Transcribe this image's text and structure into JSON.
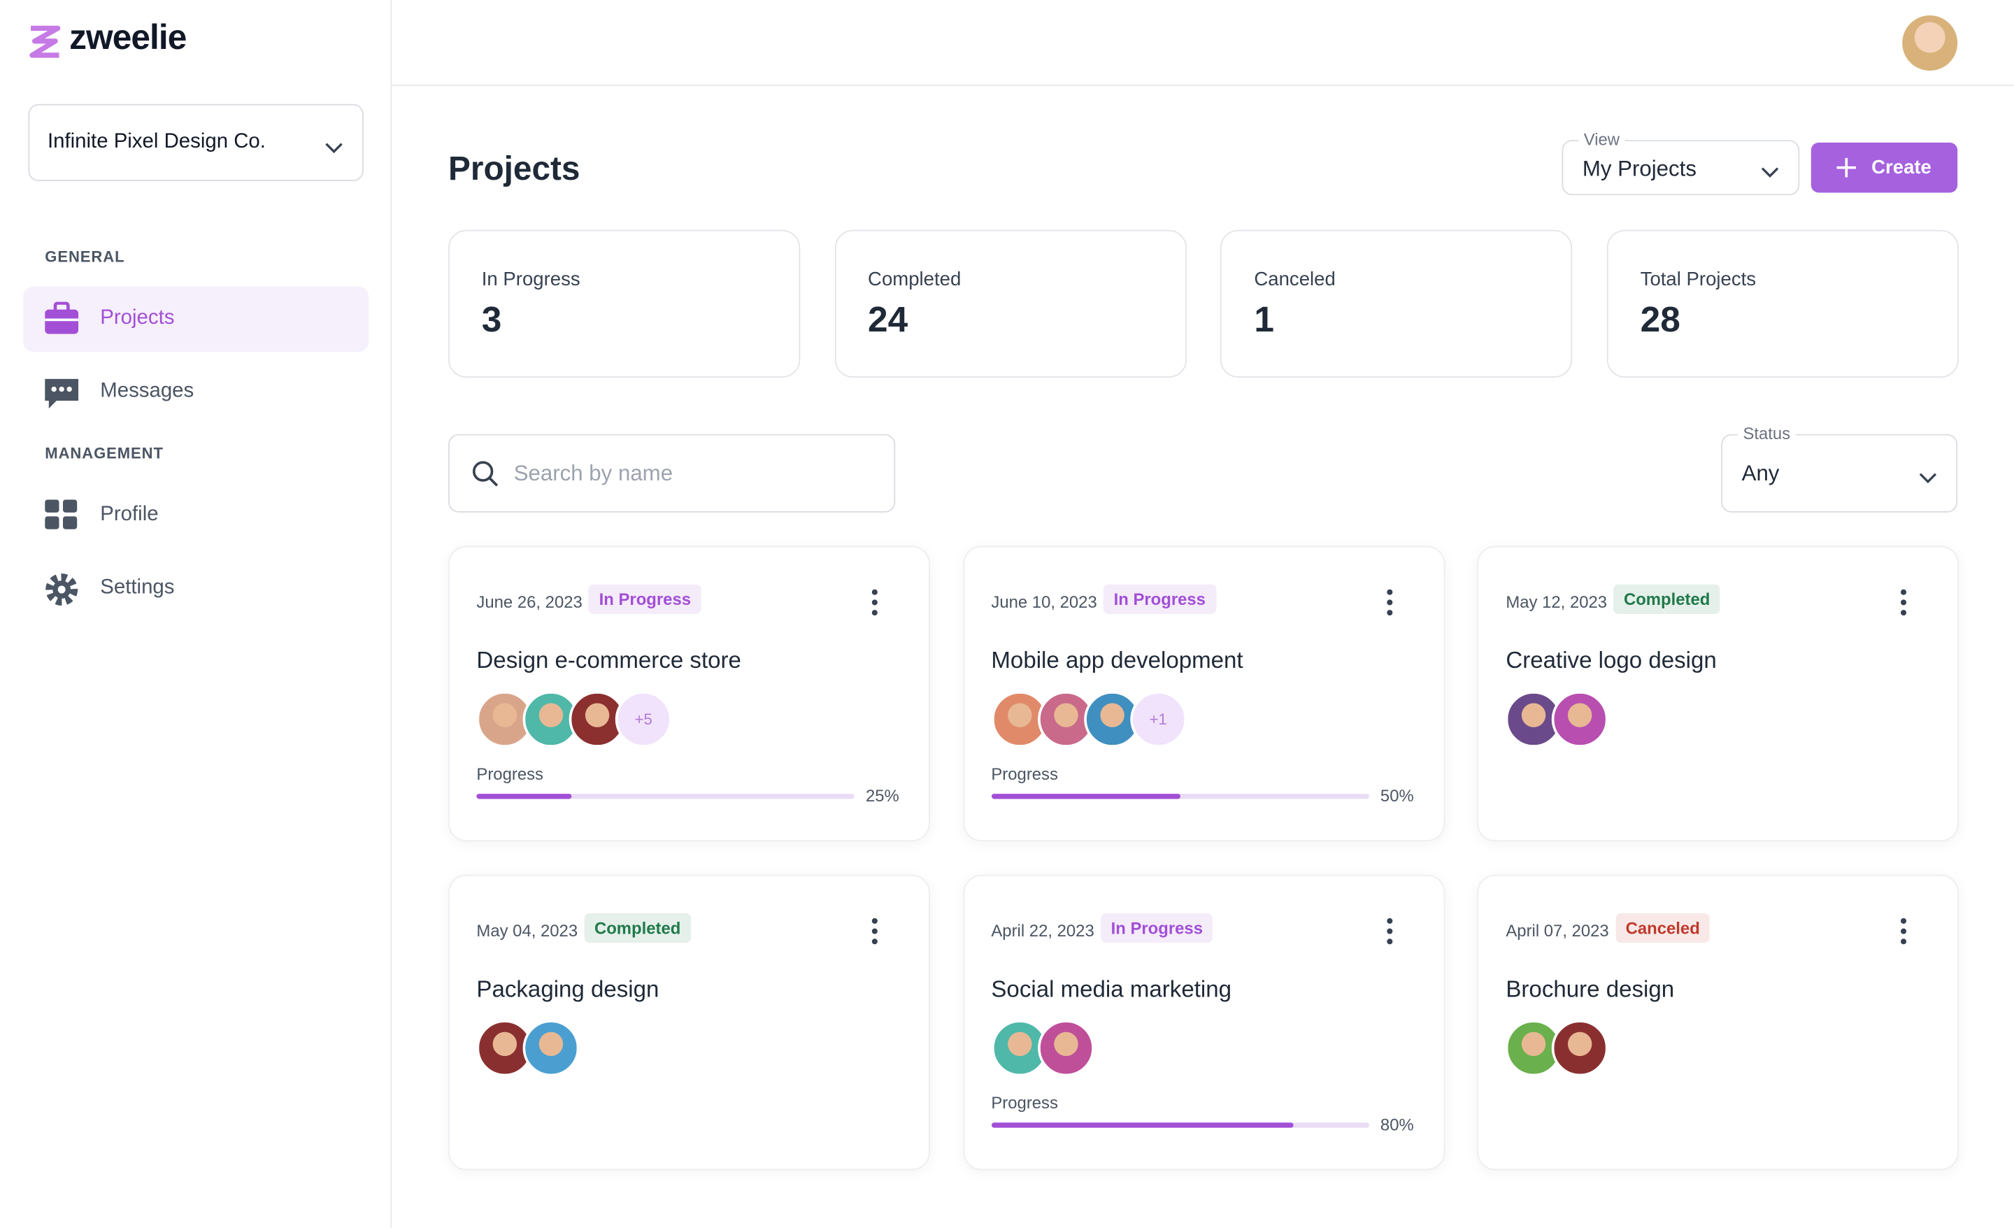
{
  "brand": "zweelie",
  "organization": "Infinite Pixel Design Co.",
  "sidebar": {
    "sections": [
      {
        "heading": "GENERAL",
        "items": [
          "Projects",
          "Messages"
        ]
      },
      {
        "heading": "MANAGEMENT",
        "items": [
          "Profile",
          "Settings"
        ]
      }
    ]
  },
  "header": {
    "title": "Projects",
    "view_label": "View",
    "view_value": "My Projects",
    "create_button": "Create"
  },
  "stats": [
    {
      "label": "In Progress",
      "value": 3
    },
    {
      "label": "Completed",
      "value": 24
    },
    {
      "label": "Canceled",
      "value": 1
    },
    {
      "label": "Total Projects",
      "value": 28
    }
  ],
  "search_placeholder": "Search by name",
  "status_filter": {
    "label": "Status",
    "value": "Any"
  },
  "projects": [
    {
      "date": "June 26, 2023",
      "status": "In Progress",
      "status_color": "#a24fd6",
      "title": "Design e-commerce store",
      "avatar_colors": [
        "#d9a58a",
        "#4fb8a8",
        "#8c2f2f"
      ],
      "extra_members": "+5",
      "progress": {
        "label": "Progress",
        "value": 25,
        "value_label": "25%"
      }
    },
    {
      "date": "June 10, 2023",
      "status": "In Progress",
      "status_color": "#a24fd6",
      "title": "Mobile app development",
      "avatar_colors": [
        "#e08a6a",
        "#c96a8a",
        "#3f8fc0"
      ],
      "extra_members": "+1",
      "progress": {
        "label": "Progress",
        "value": 50,
        "value_label": "50%"
      }
    },
    {
      "date": "May 12, 2023",
      "status": "Completed",
      "status_color": "#1f7a4a",
      "title": "Creative logo design",
      "avatar_colors": [
        "#6a4a8a",
        "#b84fb0"
      ]
    },
    {
      "date": "May 04, 2023",
      "status": "Completed",
      "status_color": "#1f7a4a",
      "title": "Packaging design",
      "avatar_colors": [
        "#8a2f2f",
        "#4a9fd0"
      ]
    },
    {
      "date": "April 22, 2023",
      "status": "In Progress",
      "status_color": "#a24fd6",
      "title": "Social media marketing",
      "avatar_colors": [
        "#4fb8a8",
        "#c04f9a"
      ],
      "progress": {
        "label": "Progress",
        "value": 80,
        "value_label": "80%"
      }
    },
    {
      "date": "April 07, 2023",
      "status": "Canceled",
      "status_color": "#c0392b",
      "title": "Brochure design",
      "avatar_colors": [
        "#6ab04c",
        "#8a2f2f"
      ]
    }
  ]
}
